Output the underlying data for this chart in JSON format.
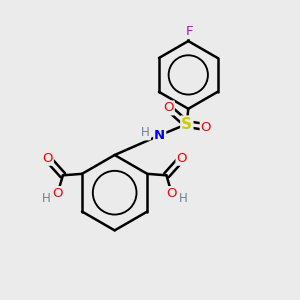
{
  "background_color": "#ebebeb",
  "atom_colors": {
    "C": "#000000",
    "H": "#708090",
    "N": "#0000FF",
    "O": "#FF0000",
    "S": "#cccc00",
    "F": "#cc00cc"
  },
  "bond_color": "#000000",
  "figsize": [
    3.0,
    3.0
  ],
  "dpi": 100
}
